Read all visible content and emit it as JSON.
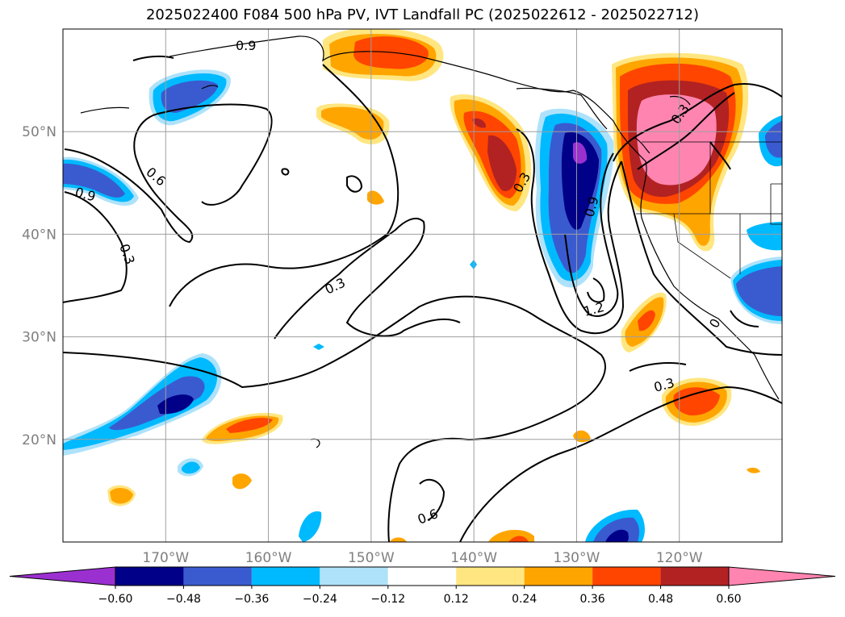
{
  "title": "2025022400 F084 500 hPa PV, IVT Landfall PC (2025022612 - 2025022712)",
  "map": {
    "lat_ticks": [
      {
        "label": "20°N",
        "value": 20
      },
      {
        "label": "30°N",
        "value": 30
      },
      {
        "label": "40°N",
        "value": 40
      },
      {
        "label": "50°N",
        "value": 50
      }
    ],
    "lon_ticks": [
      {
        "label": "170°W",
        "value": -170
      },
      {
        "label": "160°W",
        "value": -160
      },
      {
        "label": "150°W",
        "value": -150
      },
      {
        "label": "140°W",
        "value": -140
      },
      {
        "label": "130°W",
        "value": -130
      },
      {
        "label": "120°W",
        "value": -120
      }
    ],
    "lat_range": [
      10,
      60
    ],
    "lon_range": [
      -180,
      -110
    ],
    "grid": true,
    "contour_labels": [
      "0.9",
      "0.6",
      "0.9",
      "0.3",
      "0.3",
      "0.3",
      "0.9",
      "1.2",
      "0.3",
      "0.6",
      "0.3",
      "0"
    ]
  },
  "colorbar": {
    "ticks": [
      "−0.60",
      "−0.48",
      "−0.36",
      "−0.24",
      "−0.12",
      "0.12",
      "0.24",
      "0.36",
      "0.48",
      "0.60"
    ],
    "colors": [
      "#9b30d0",
      "#000088",
      "#3a5bd0",
      "#00baff",
      "#aee2fa",
      "#ffffff",
      "#ffe680",
      "#ffa500",
      "#ff4500",
      "#b22222",
      "#ff85b0"
    ]
  }
}
